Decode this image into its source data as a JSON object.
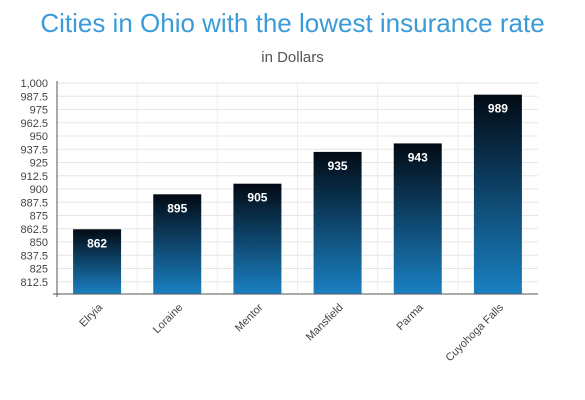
{
  "chart_data": {
    "type": "bar",
    "title": "Cities in Ohio with the lowest insurance rate",
    "subtitle": "in Dollars",
    "xlabel": "",
    "ylabel": "",
    "categories": [
      "Elryia",
      "Loraine",
      "Mentor",
      "Mansfield",
      "Parma",
      "Cuyohoga Falls"
    ],
    "values": [
      862,
      895,
      905,
      935,
      943,
      989
    ],
    "ylim": [
      800,
      1000
    ],
    "yticks": [
      "812.5",
      "825",
      "837.5",
      "850",
      "862.5",
      "875",
      "887.5",
      "900",
      "912.5",
      "925",
      "937.5",
      "950",
      "962.5",
      "975",
      "987.5",
      "1,000"
    ],
    "ytick_values": [
      812.5,
      825,
      837.5,
      850,
      862.5,
      875,
      887.5,
      900,
      912.5,
      925,
      937.5,
      950,
      962.5,
      975,
      987.5,
      1000
    ],
    "grid": true,
    "colors": {
      "bar_top": "#020a14",
      "bar_bottom": "#1a80c2",
      "title": "#3a9bd8"
    }
  }
}
